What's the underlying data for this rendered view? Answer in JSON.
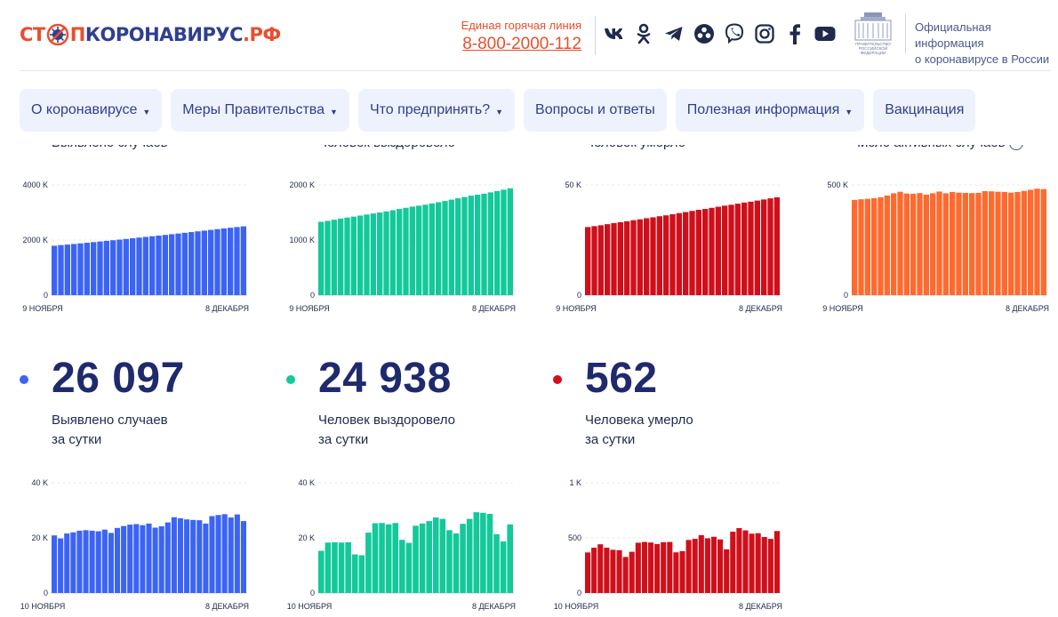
{
  "header": {
    "logo_stop": "СТ",
    "logo_mid": "П",
    "logo_main": "КОРОНАВИРУС",
    "logo_rf": ".РФ",
    "hotline_caption": "Единая горячая линия",
    "hotline_number": "8-800-2000-112",
    "social_icons": [
      "vk-icon",
      "odnoklassniki-icon",
      "telegram-icon",
      "mirtesen-icon",
      "viber-icon",
      "instagram-icon",
      "facebook-icon",
      "youtube-icon"
    ],
    "gov_emblem_text": [
      "ПРАВИТЕЛЬСТВО",
      "РОССИЙСКОЙ",
      "ФЕДЕРАЦИИ"
    ],
    "gov_text_line1": "Официальная информация",
    "gov_text_line2": "о коронавирусе в России"
  },
  "nav": [
    {
      "label": "О коронавирусе",
      "dropdown": true
    },
    {
      "label": "Меры Правительства",
      "dropdown": true
    },
    {
      "label": "Что предпринять?",
      "dropdown": true
    },
    {
      "label": "Вопросы и ответы",
      "dropdown": false
    },
    {
      "label": "Полезная информация",
      "dropdown": true
    },
    {
      "label": "Вакцинация",
      "dropdown": false
    }
  ],
  "top_labels": [
    "Выявлено случаев",
    "Человек выздоровело",
    "Человек умерло",
    "Число активных случаев"
  ],
  "colors": {
    "blue": "#3b64f5",
    "green": "#13c99a",
    "red": "#d00f1a",
    "orange": "#ff6a2f",
    "accent": "#e94e2d",
    "navy": "#2e3f8f"
  },
  "stats": [
    {
      "value": "26 097",
      "caption_line1": "Выявлено случаев",
      "caption_line2": "за сутки",
      "color": "#3b64f5"
    },
    {
      "value": "24 938",
      "caption_line1": "Человек выздоровело",
      "caption_line2": "за сутки",
      "color": "#13c99a"
    },
    {
      "value": "562",
      "caption_line1": "Человека умерло",
      "caption_line2": "за сутки",
      "color": "#d00f1a"
    }
  ],
  "chart_data": [
    {
      "id": "cum-cases",
      "type": "bar",
      "color": "#3b64f5",
      "title": "",
      "ylim": [
        0,
        4000
      ],
      "yticks": [
        0,
        2000,
        4000
      ],
      "ytick_labels": [
        "0",
        "2000 K",
        "4000 K"
      ],
      "x_start_label": "9 НОЯБРЯ",
      "x_end_label": "8 ДЕКАБРЯ",
      "values": [
        1793,
        1817,
        1836,
        1858,
        1880,
        1902,
        1925,
        1948,
        1971,
        1992,
        2015,
        2039,
        2064,
        2089,
        2114,
        2138,
        2162,
        2187,
        2212,
        2237,
        2263,
        2289,
        2316,
        2342,
        2368,
        2395,
        2422,
        2447,
        2472,
        2497
      ]
    },
    {
      "id": "cum-recovered",
      "type": "bar",
      "color": "#13c99a",
      "title": "",
      "ylim": [
        0,
        2000
      ],
      "yticks": [
        0,
        1000,
        2000
      ],
      "ytick_labels": [
        "0",
        "1000 K",
        "2000 K"
      ],
      "x_start_label": "9 НОЯБРЯ",
      "x_end_label": "8 ДЕКАБРЯ",
      "values": [
        1331,
        1348,
        1369,
        1389,
        1408,
        1425,
        1444,
        1463,
        1482,
        1501,
        1520,
        1541,
        1563,
        1585,
        1606,
        1623,
        1641,
        1663,
        1686,
        1708,
        1733,
        1757,
        1781,
        1805,
        1823,
        1841,
        1865,
        1889,
        1914,
        1939
      ]
    },
    {
      "id": "cum-deaths",
      "type": "bar",
      "color": "#d00f1a",
      "title": "",
      "ylim": [
        0,
        50
      ],
      "yticks": [
        0,
        50
      ],
      "ytick_labels": [
        "0",
        "50 K"
      ],
      "x_start_label": "9 НОЯБРЯ",
      "x_end_label": "8 ДЕКАБРЯ",
      "values": [
        30.9,
        31.3,
        31.7,
        32.2,
        32.7,
        33.1,
        33.5,
        34.0,
        34.4,
        34.9,
        35.3,
        35.8,
        36.2,
        36.7,
        37.2,
        37.7,
        38.2,
        38.7,
        39.1,
        39.6,
        40.1,
        40.6,
        41.0,
        41.5,
        42.0,
        42.4,
        42.9,
        43.4,
        43.9,
        44.4
      ]
    },
    {
      "id": "active",
      "type": "bar",
      "color": "#ff6a2f",
      "title": "",
      "ylim": [
        0,
        500
      ],
      "yticks": [
        0,
        500
      ],
      "ytick_labels": [
        "0",
        "500 K"
      ],
      "x_start_label": "9 НОЯБРЯ",
      "x_end_label": "8 ДЕКАБРЯ",
      "values": [
        432,
        435,
        437,
        440,
        444,
        452,
        462,
        469,
        461,
        460,
        463,
        456,
        462,
        470,
        462,
        468,
        465,
        464,
        463,
        464,
        472,
        471,
        469,
        468,
        465,
        468,
        473,
        478,
        483,
        481
      ]
    },
    {
      "id": "daily-cases",
      "type": "bar",
      "color": "#3b64f5",
      "title": "",
      "ylim": [
        0,
        40
      ],
      "yticks": [
        0,
        20,
        40
      ],
      "ytick_labels": [
        "0",
        "20 K",
        "40 K"
      ],
      "x_start_label": "10 НОЯБРЯ",
      "x_end_label": "8 ДЕКАБРЯ",
      "values": [
        20.9,
        19.8,
        21.6,
        22.0,
        22.6,
        22.8,
        22.6,
        22.4,
        23.0,
        21.8,
        23.6,
        24.3,
        24.8,
        25.0,
        24.6,
        25.2,
        23.7,
        24.2,
        25.6,
        27.5,
        27.1,
        26.7,
        26.5,
        26.4,
        25.2,
        27.9,
        28.3,
        28.6,
        27.4,
        28.5,
        26.1
      ]
    },
    {
      "id": "daily-recovered",
      "type": "bar",
      "color": "#13c99a",
      "title": "",
      "ylim": [
        0,
        40
      ],
      "yticks": [
        0,
        20,
        40
      ],
      "ytick_labels": [
        "0",
        "20 K",
        "40 K"
      ],
      "x_start_label": "10 НОЯБРЯ",
      "x_end_label": "8 ДЕКАБРЯ",
      "values": [
        15.3,
        18.3,
        18.4,
        18.3,
        18.4,
        14.0,
        13.7,
        21.9,
        25.3,
        25.4,
        24.9,
        25.4,
        19.3,
        18.2,
        24.4,
        25.2,
        26.1,
        27.4,
        26.9,
        22.8,
        21.6,
        25.1,
        26.9,
        29.3,
        29.1,
        28.7,
        21.3,
        18.7,
        24.9
      ]
    },
    {
      "id": "daily-deaths",
      "type": "bar",
      "color": "#d00f1a",
      "title": "",
      "ylim": [
        0,
        1000
      ],
      "yticks": [
        0,
        500,
        1000
      ],
      "ytick_labels": [
        "0",
        "500",
        "1 K"
      ],
      "x_start_label": "10 НОЯБРЯ",
      "x_end_label": "8 ДЕКАБРЯ",
      "values": [
        368,
        411,
        442,
        411,
        392,
        388,
        327,
        374,
        456,
        463,
        458,
        444,
        461,
        463,
        369,
        380,
        481,
        491,
        525,
        496,
        510,
        486,
        396,
        556,
        589,
        568,
        538,
        542,
        508,
        491,
        562
      ]
    }
  ]
}
